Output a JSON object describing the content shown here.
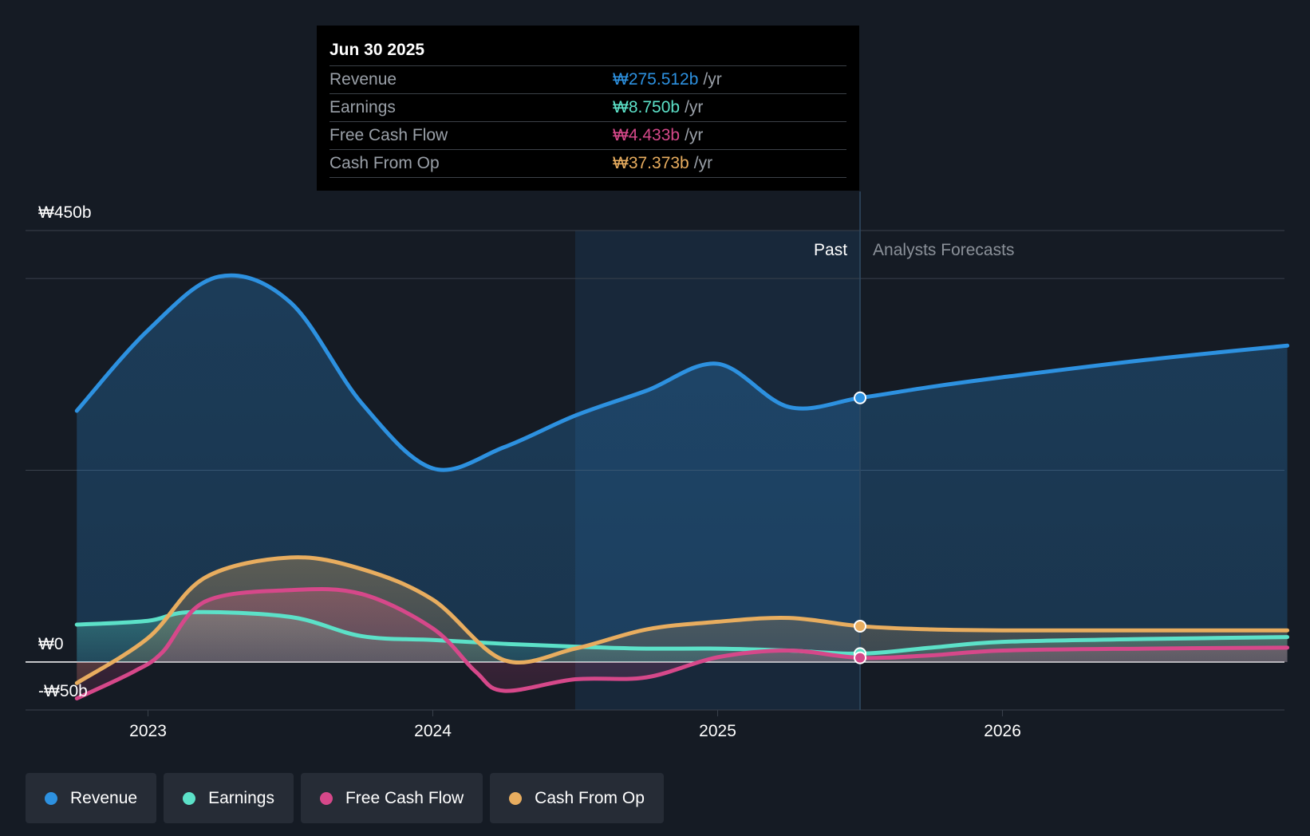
{
  "chart_data": {
    "type": "area",
    "title": "",
    "x_ticks": [
      {
        "label": "2023",
        "value": 2023.0
      },
      {
        "label": "2024",
        "value": 2024.0
      },
      {
        "label": "2025",
        "value": 2025.0
      },
      {
        "label": "2026",
        "value": 2026.0
      }
    ],
    "y_ticks": [
      {
        "label": "₩450b",
        "value": 450
      },
      {
        "label": "₩0",
        "value": 0
      },
      {
        "label": "-₩50b",
        "value": -50
      }
    ],
    "ylim": [
      -50,
      450
    ],
    "xlim": [
      2022.57,
      2026.99
    ],
    "past_label": "Past",
    "forecast_label": "Analysts Forecasts",
    "divider_x": 2025.5,
    "shaded_start_x": 2024.5,
    "series": [
      {
        "name": "Revenue",
        "color": "#2d91e0",
        "points": [
          [
            2022.75,
            262
          ],
          [
            2023.0,
            346
          ],
          [
            2023.25,
            402
          ],
          [
            2023.5,
            375
          ],
          [
            2023.75,
            270
          ],
          [
            2024.0,
            202
          ],
          [
            2024.25,
            224
          ],
          [
            2024.5,
            257
          ],
          [
            2024.75,
            283
          ],
          [
            2025.0,
            311
          ],
          [
            2025.25,
            266
          ],
          [
            2025.5,
            275.5
          ],
          [
            2025.75,
            287
          ],
          [
            2026.0,
            297
          ],
          [
            2026.5,
            315
          ],
          [
            2027.0,
            330
          ]
        ]
      },
      {
        "name": "Earnings",
        "color": "#5ce1c8",
        "points": [
          [
            2022.75,
            39
          ],
          [
            2023.0,
            43
          ],
          [
            2023.15,
            52
          ],
          [
            2023.5,
            47
          ],
          [
            2023.75,
            27
          ],
          [
            2024.0,
            23
          ],
          [
            2024.25,
            19
          ],
          [
            2024.5,
            16
          ],
          [
            2024.75,
            14
          ],
          [
            2025.0,
            14
          ],
          [
            2025.25,
            12
          ],
          [
            2025.5,
            8.75
          ],
          [
            2025.75,
            15
          ],
          [
            2026.0,
            21
          ],
          [
            2026.5,
            24
          ],
          [
            2027.0,
            26
          ]
        ]
      },
      {
        "name": "Free Cash Flow",
        "color": "#d6488a",
        "points": [
          [
            2022.75,
            -38
          ],
          [
            2022.95,
            -10
          ],
          [
            2023.05,
            10
          ],
          [
            2023.2,
            63
          ],
          [
            2023.5,
            75
          ],
          [
            2023.75,
            71
          ],
          [
            2024.0,
            35
          ],
          [
            2024.15,
            -10
          ],
          [
            2024.25,
            -30
          ],
          [
            2024.5,
            -18
          ],
          [
            2024.75,
            -16
          ],
          [
            2025.0,
            5
          ],
          [
            2025.25,
            12
          ],
          [
            2025.5,
            4.4
          ],
          [
            2025.75,
            7
          ],
          [
            2026.0,
            12
          ],
          [
            2026.5,
            14
          ],
          [
            2027.0,
            15
          ]
        ]
      },
      {
        "name": "Cash From Op",
        "color": "#e8ad5f",
        "points": [
          [
            2022.75,
            -22
          ],
          [
            2023.0,
            25
          ],
          [
            2023.2,
            88
          ],
          [
            2023.5,
            109
          ],
          [
            2023.75,
            97
          ],
          [
            2024.0,
            65
          ],
          [
            2024.25,
            2
          ],
          [
            2024.5,
            14
          ],
          [
            2024.75,
            34
          ],
          [
            2025.0,
            42
          ],
          [
            2025.25,
            46
          ],
          [
            2025.5,
            37.4
          ],
          [
            2025.75,
            34
          ],
          [
            2026.0,
            33
          ],
          [
            2026.5,
            33
          ],
          [
            2027.0,
            33
          ]
        ]
      }
    ]
  },
  "tooltip": {
    "date": "Jun 30 2025",
    "rows": [
      {
        "label": "Revenue",
        "value": "₩275.512b",
        "unit": "/yr",
        "color": "#2d91e0"
      },
      {
        "label": "Earnings",
        "value": "₩8.750b",
        "unit": "/yr",
        "color": "#5ce1c8"
      },
      {
        "label": "Free Cash Flow",
        "value": "₩4.433b",
        "unit": "/yr",
        "color": "#d6488a"
      },
      {
        "label": "Cash From Op",
        "value": "₩37.373b",
        "unit": "/yr",
        "color": "#e8ad5f"
      }
    ]
  },
  "legend": [
    {
      "label": "Revenue",
      "color": "#2d91e0"
    },
    {
      "label": "Earnings",
      "color": "#5ce1c8"
    },
    {
      "label": "Free Cash Flow",
      "color": "#d6488a"
    },
    {
      "label": "Cash From Op",
      "color": "#e8ad5f"
    }
  ]
}
